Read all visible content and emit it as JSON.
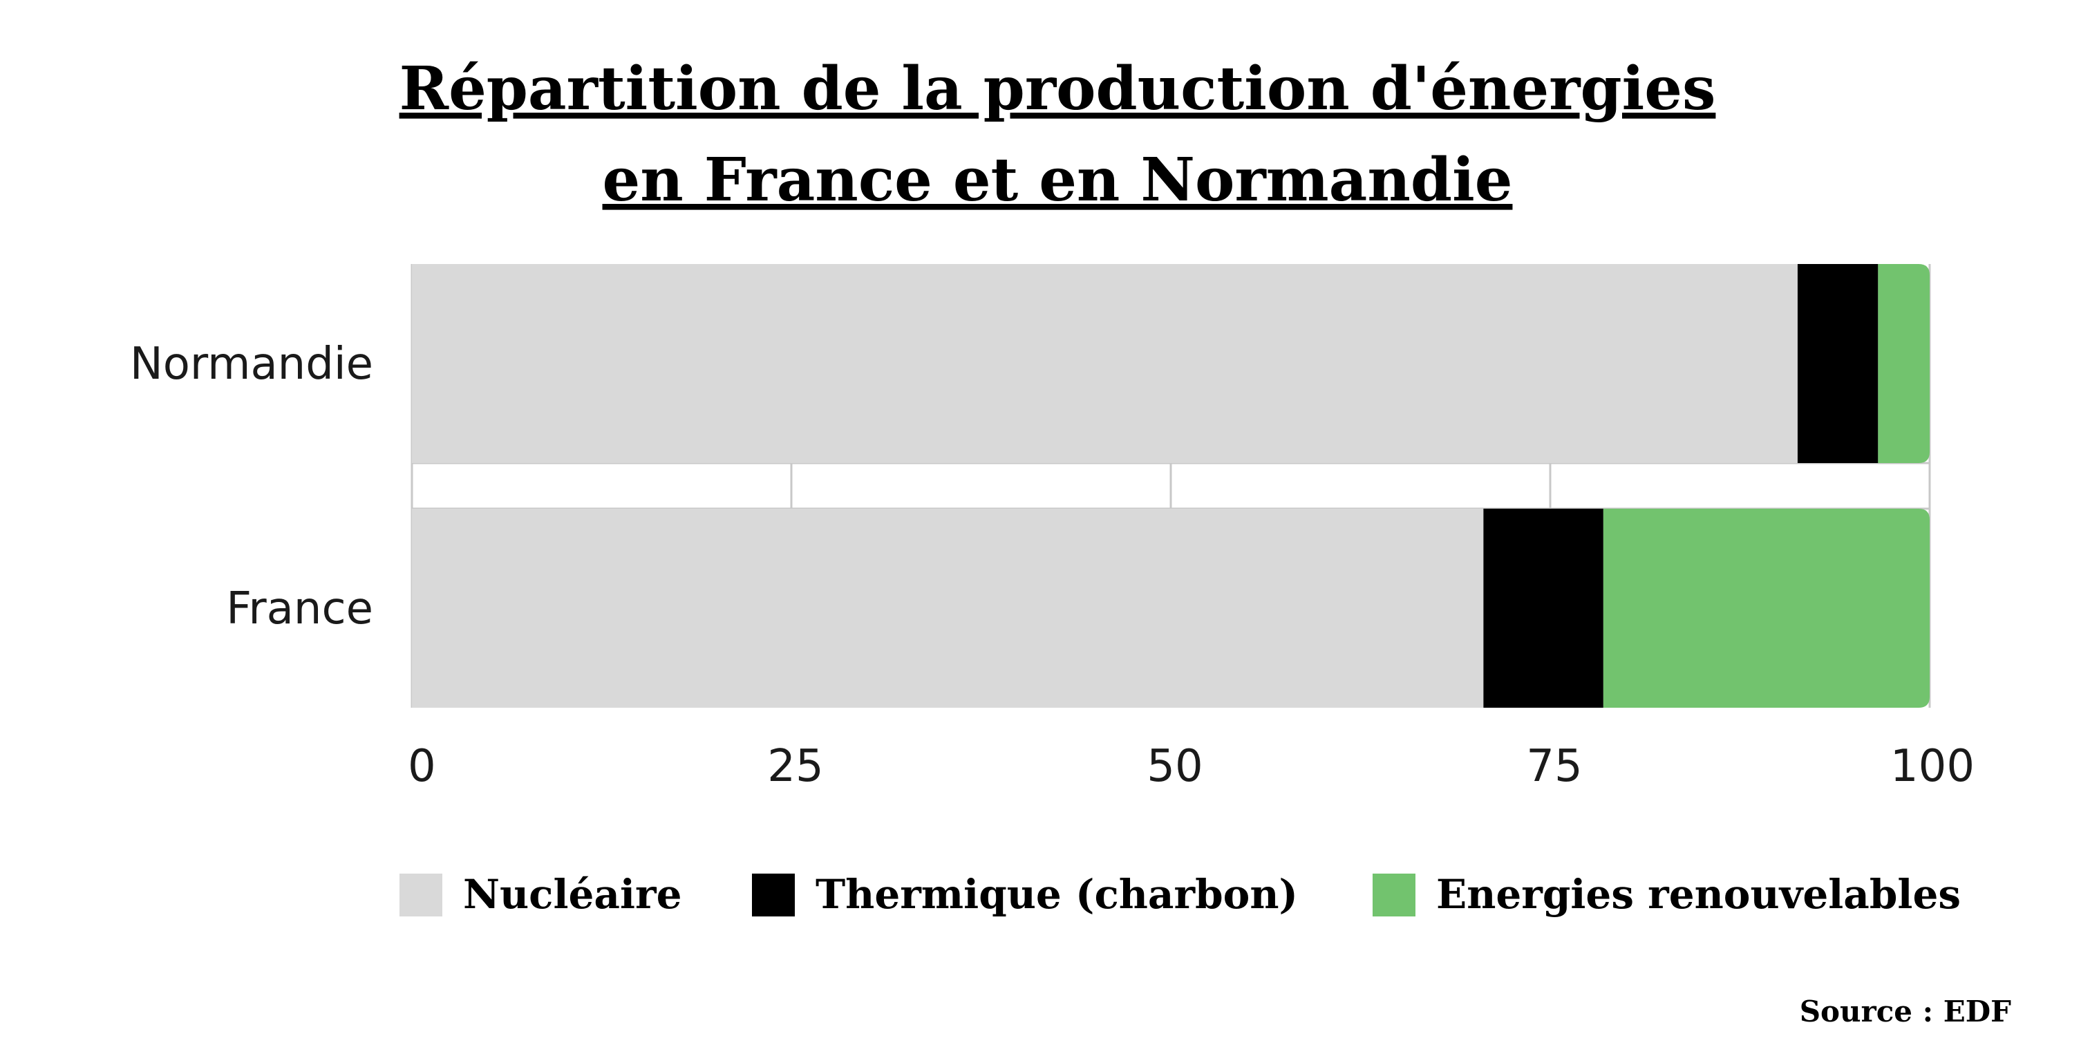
{
  "chart_data": {
    "type": "bar",
    "orientation": "horizontal",
    "stacked": true,
    "title": "Répartition de la production d'énergies en France et en Normandie",
    "title_lines": [
      "Répartition de la production d'énergies",
      "en France et en Normandie"
    ],
    "categories": [
      "Normandie",
      "France"
    ],
    "series": [
      {
        "name": "Nucléaire",
        "values": [
          91.3,
          70.6
        ],
        "color": "#d9d9d9"
      },
      {
        "name": "Thermique (charbon)",
        "values": [
          5.3,
          7.9
        ],
        "color": "#000000"
      },
      {
        "name": "Energies renouvelables",
        "values": [
          3.4,
          21.5
        ],
        "color": "#72c36e"
      }
    ],
    "xlim": [
      0,
      100
    ],
    "xticks": [
      "0",
      "25",
      "50",
      "75",
      "100"
    ],
    "grid": true,
    "legend_position": "bottom",
    "source": "Source : EDF"
  }
}
